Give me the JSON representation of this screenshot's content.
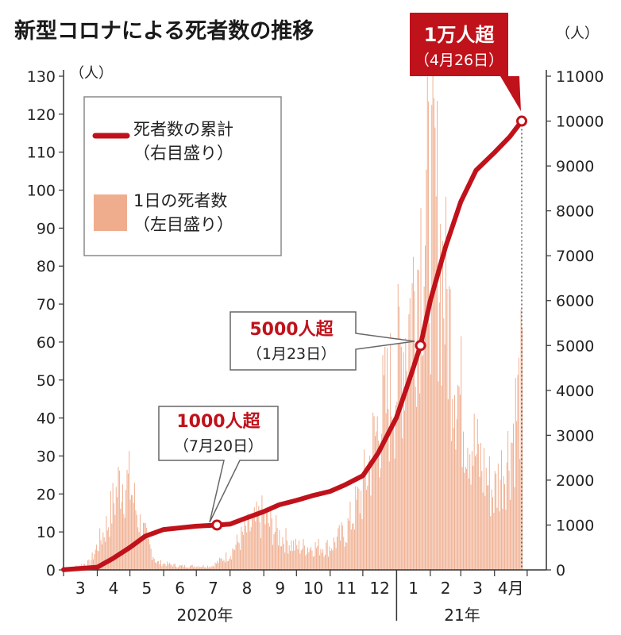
{
  "title": "新型コロナによる死者数の推移",
  "left_unit": "（人）",
  "right_unit": "（人）",
  "legend": {
    "line_label": "死者数の累計",
    "line_sub": "（右目盛り）",
    "bar_label": "1日の死者数",
    "bar_sub": "（左目盛り）"
  },
  "annotations": [
    {
      "label": "1000人超",
      "date": "（7月20日）"
    },
    {
      "label": "5000人超",
      "date": "（1月23日）"
    },
    {
      "label": "1万人超",
      "date": "（4月26日）"
    }
  ],
  "months": [
    "3",
    "4",
    "5",
    "6",
    "7",
    "8",
    "9",
    "10",
    "11",
    "12",
    "1",
    "2",
    "3",
    "4月"
  ],
  "years": [
    "2020年",
    "21年"
  ],
  "colors": {
    "bar": "#f0ad8e",
    "line": "#c0121b",
    "callout": "#c0121b"
  },
  "chart_data": {
    "type": "bar+line",
    "title": "新型コロナによる死者数の推移",
    "x_range": [
      "2020-03-01",
      "2021-04-26"
    ],
    "left_axis": {
      "unit": "（人）",
      "ylim": [
        0,
        130
      ],
      "ticks": [
        0,
        10,
        20,
        30,
        40,
        50,
        60,
        70,
        80,
        90,
        100,
        110,
        120,
        130
      ]
    },
    "right_axis": {
      "unit": "（人）",
      "ylim": [
        0,
        11000
      ],
      "ticks": [
        0,
        1000,
        2000,
        3000,
        4000,
        5000,
        6000,
        7000,
        8000,
        9000,
        10000,
        11000
      ]
    },
    "series": [
      {
        "name": "1日の死者数（左目盛り）",
        "type": "bar",
        "axis": "left",
        "approx_profile": [
          [
            "2020-03-01",
            0
          ],
          [
            "2020-03-25",
            2
          ],
          [
            "2020-04-10",
            12
          ],
          [
            "2020-04-22",
            24
          ],
          [
            "2020-05-01",
            22
          ],
          [
            "2020-05-10",
            12
          ],
          [
            "2020-05-25",
            2
          ],
          [
            "2020-06-15",
            1
          ],
          [
            "2020-07-15",
            1
          ],
          [
            "2020-07-31",
            4
          ],
          [
            "2020-08-15",
            10
          ],
          [
            "2020-08-31",
            14
          ],
          [
            "2020-09-15",
            9
          ],
          [
            "2020-09-30",
            6
          ],
          [
            "2020-10-15",
            6
          ],
          [
            "2020-10-31",
            6
          ],
          [
            "2020-11-15",
            10
          ],
          [
            "2020-11-30",
            20
          ],
          [
            "2020-12-15",
            38
          ],
          [
            "2020-12-31",
            50
          ],
          [
            "2021-01-15",
            70
          ],
          [
            "2021-01-25",
            90
          ],
          [
            "2021-02-05",
            95
          ],
          [
            "2021-02-15",
            70
          ],
          [
            "2021-02-28",
            45
          ],
          [
            "2021-03-15",
            30
          ],
          [
            "2021-03-31",
            20
          ],
          [
            "2021-04-15",
            32
          ],
          [
            "2021-04-26",
            50
          ]
        ]
      },
      {
        "name": "死者数の累計（右目盛り）",
        "type": "line",
        "axis": "right",
        "points": [
          [
            "2020-03-01",
            5
          ],
          [
            "2020-04-01",
            60
          ],
          [
            "2020-04-15",
            250
          ],
          [
            "2020-05-01",
            500
          ],
          [
            "2020-05-15",
            750
          ],
          [
            "2020-06-01",
            900
          ],
          [
            "2020-07-01",
            975
          ],
          [
            "2020-07-20",
            1000
          ],
          [
            "2020-08-01",
            1020
          ],
          [
            "2020-08-15",
            1150
          ],
          [
            "2020-09-01",
            1300
          ],
          [
            "2020-09-15",
            1450
          ],
          [
            "2020-10-01",
            1550
          ],
          [
            "2020-10-15",
            1650
          ],
          [
            "2020-11-01",
            1750
          ],
          [
            "2020-11-15",
            1900
          ],
          [
            "2020-12-01",
            2100
          ],
          [
            "2020-12-15",
            2600
          ],
          [
            "2021-01-01",
            3400
          ],
          [
            "2021-01-15",
            4400
          ],
          [
            "2021-01-23",
            5000
          ],
          [
            "2021-02-01",
            6000
          ],
          [
            "2021-02-15",
            7200
          ],
          [
            "2021-03-01",
            8200
          ],
          [
            "2021-03-15",
            8900
          ],
          [
            "2021-04-01",
            9300
          ],
          [
            "2021-04-15",
            9650
          ],
          [
            "2021-04-26",
            10000
          ]
        ]
      }
    ]
  }
}
